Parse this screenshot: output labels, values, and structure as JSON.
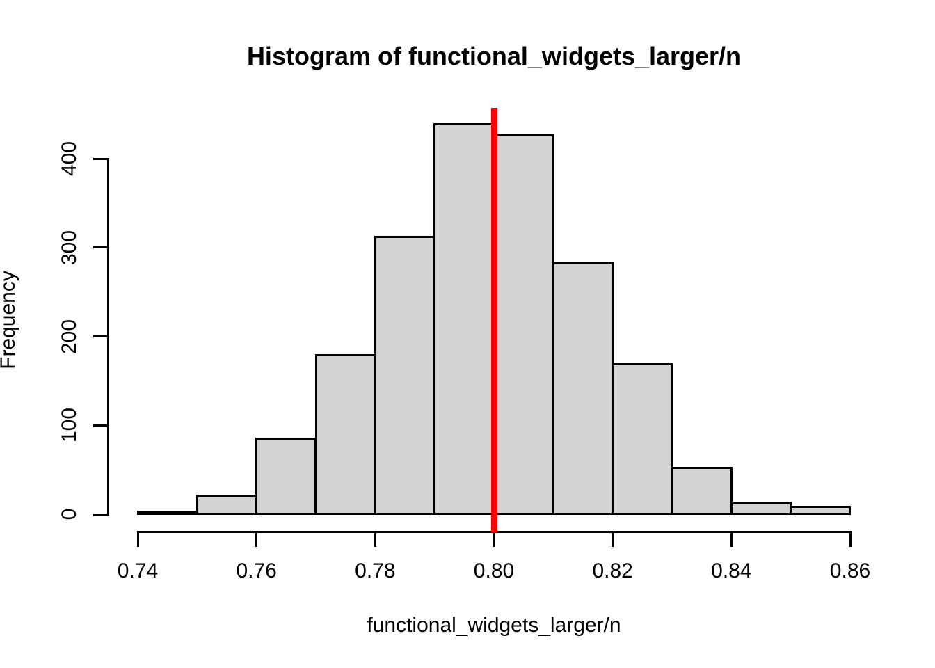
{
  "chart_data": {
    "type": "bar",
    "subtype": "histogram",
    "title": "Histogram of functional_widgets_larger/n",
    "xlabel": "functional_widgets_larger/n",
    "ylabel": "Frequency",
    "bin_start": 0.74,
    "bin_width": 0.01,
    "bin_edges": [
      0.74,
      0.75,
      0.76,
      0.77,
      0.78,
      0.79,
      0.8,
      0.81,
      0.82,
      0.83,
      0.84,
      0.85,
      0.86
    ],
    "counts": [
      3,
      21,
      85,
      179,
      312,
      439,
      427,
      283,
      169,
      52,
      13,
      8
    ],
    "x_ticks": [
      {
        "value": 0.74,
        "label": "0.74"
      },
      {
        "value": 0.76,
        "label": "0.76"
      },
      {
        "value": 0.78,
        "label": "0.78"
      },
      {
        "value": 0.8,
        "label": "0.80"
      },
      {
        "value": 0.82,
        "label": "0.82"
      },
      {
        "value": 0.84,
        "label": "0.84"
      },
      {
        "value": 0.86,
        "label": "0.86"
      }
    ],
    "y_ticks": [
      {
        "value": 0,
        "label": "0"
      },
      {
        "value": 100,
        "label": "100"
      },
      {
        "value": 200,
        "label": "200"
      },
      {
        "value": 300,
        "label": "300"
      },
      {
        "value": 400,
        "label": "400"
      }
    ],
    "xlim": [
      0.74,
      0.86
    ],
    "ylim": [
      0,
      400
    ],
    "grid": false,
    "legend": "none",
    "vline": {
      "x": 0.8,
      "color": "#FF0000"
    },
    "bar_fill_color": "#D3D3D3",
    "bar_border_color": "#000000",
    "axis_color": "#000000",
    "background_color": "#FFFFFF"
  }
}
